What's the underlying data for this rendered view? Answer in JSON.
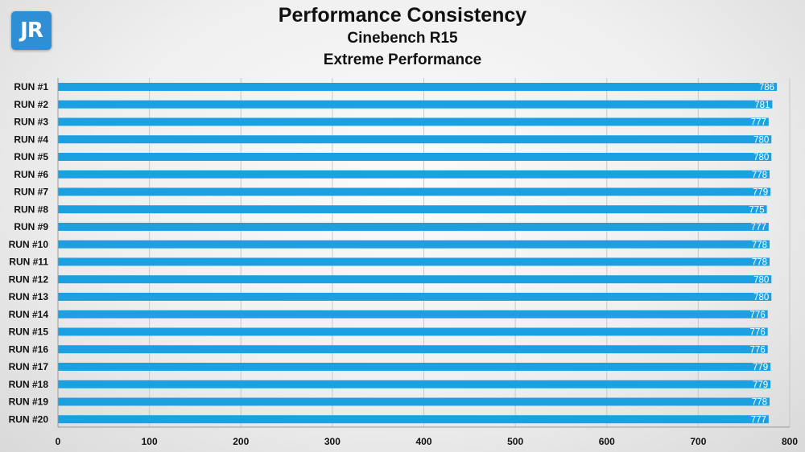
{
  "logo": {
    "text": "JR",
    "color": "#2f8fd5"
  },
  "chart_data": {
    "type": "bar",
    "orientation": "horizontal",
    "title": "Performance Consistency",
    "subtitle": "Cinebench R15",
    "subtitle2": "Extreme Performance",
    "categories": [
      "RUN #1",
      "RUN #2",
      "RUN #3",
      "RUN #4",
      "RUN #5",
      "RUN #6",
      "RUN #7",
      "RUN #8",
      "RUN #9",
      "RUN #10",
      "RUN #11",
      "RUN #12",
      "RUN #13",
      "RUN #14",
      "RUN #15",
      "RUN #16",
      "RUN #17",
      "RUN #18",
      "RUN #19",
      "RUN #20"
    ],
    "values": [
      786,
      781,
      777,
      780,
      780,
      778,
      779,
      775,
      777,
      778,
      778,
      780,
      780,
      776,
      776,
      776,
      779,
      779,
      778,
      777
    ],
    "xlim": [
      0,
      800
    ],
    "xticks": [
      0,
      100,
      200,
      300,
      400,
      500,
      600,
      700,
      800
    ],
    "grid": true,
    "legend": false,
    "bar_color": "#1ba1e2",
    "data_labels": true
  }
}
